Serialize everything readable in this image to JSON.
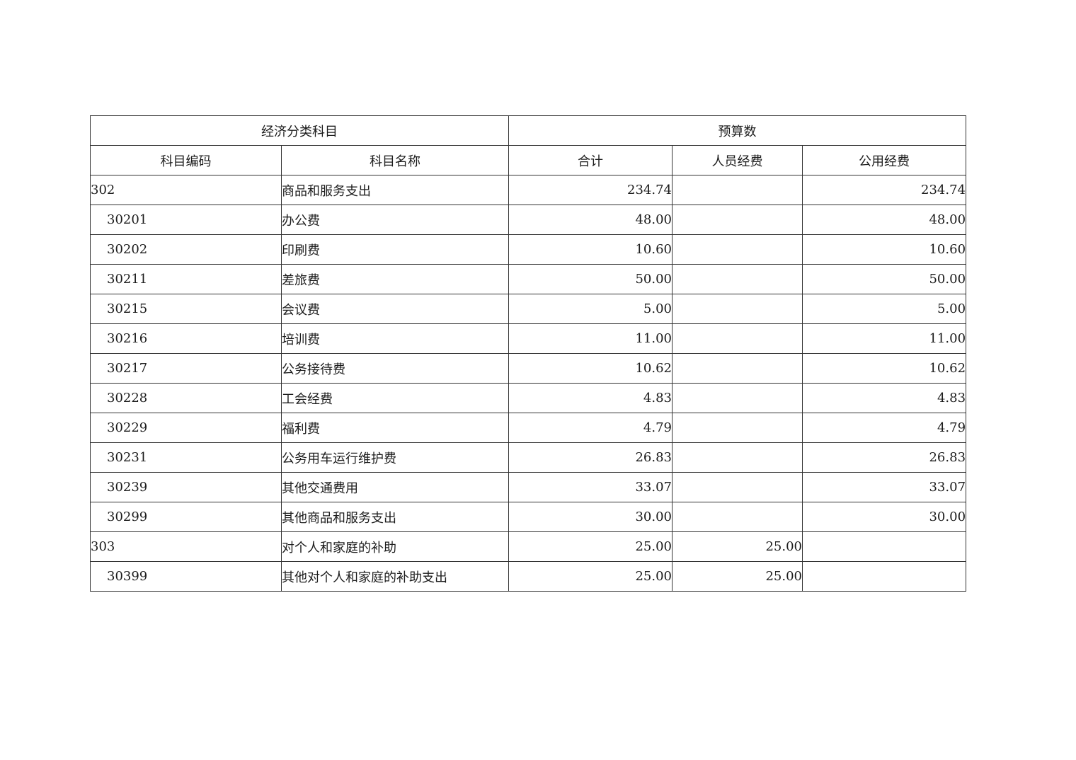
{
  "table": {
    "group_headers": [
      "经济分类科目",
      "预算数"
    ],
    "columns": [
      "科目编码",
      "科目名称",
      "合计",
      "人员经费",
      "公用经费"
    ],
    "rows": [
      {
        "code": "302",
        "name": "商品和服务支出",
        "total": "234.74",
        "personnel": "",
        "public": "234.74",
        "level": "top"
      },
      {
        "code": "30201",
        "name": "办公费",
        "total": "48.00",
        "personnel": "",
        "public": "48.00",
        "level": "sub"
      },
      {
        "code": "30202",
        "name": "印刷费",
        "total": "10.60",
        "personnel": "",
        "public": "10.60",
        "level": "sub"
      },
      {
        "code": "30211",
        "name": "差旅费",
        "total": "50.00",
        "personnel": "",
        "public": "50.00",
        "level": "sub"
      },
      {
        "code": "30215",
        "name": "会议费",
        "total": "5.00",
        "personnel": "",
        "public": "5.00",
        "level": "sub"
      },
      {
        "code": "30216",
        "name": "培训费",
        "total": "11.00",
        "personnel": "",
        "public": "11.00",
        "level": "sub"
      },
      {
        "code": "30217",
        "name": "公务接待费",
        "total": "10.62",
        "personnel": "",
        "public": "10.62",
        "level": "sub"
      },
      {
        "code": "30228",
        "name": "工会经费",
        "total": "4.83",
        "personnel": "",
        "public": "4.83",
        "level": "sub"
      },
      {
        "code": "30229",
        "name": "福利费",
        "total": "4.79",
        "personnel": "",
        "public": "4.79",
        "level": "sub"
      },
      {
        "code": "30231",
        "name": "公务用车运行维护费",
        "total": "26.83",
        "personnel": "",
        "public": "26.83",
        "level": "sub"
      },
      {
        "code": "30239",
        "name": "其他交通费用",
        "total": "33.07",
        "personnel": "",
        "public": "33.07",
        "level": "sub"
      },
      {
        "code": "30299",
        "name": "其他商品和服务支出",
        "total": "30.00",
        "personnel": "",
        "public": "30.00",
        "level": "sub"
      },
      {
        "code": "303",
        "name": "对个人和家庭的补助",
        "total": "25.00",
        "personnel": "25.00",
        "public": "",
        "level": "top"
      },
      {
        "code": "30399",
        "name": "其他对个人和家庭的补助支出",
        "total": "25.00",
        "personnel": "25.00",
        "public": "",
        "level": "sub"
      }
    ]
  }
}
